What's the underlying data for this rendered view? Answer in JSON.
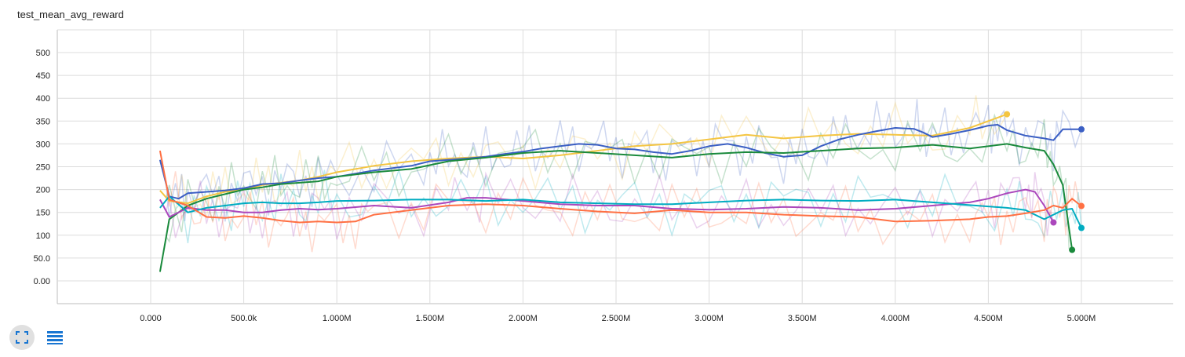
{
  "card": {
    "title": "test_mean_avg_reward"
  },
  "toolbar": {
    "icons": [
      "fit-domain-icon",
      "toggle-log-list-icon"
    ],
    "accent": "#1976d2"
  },
  "chart_data": {
    "type": "line",
    "title": "test_mean_avg_reward",
    "xlabel": "",
    "ylabel": "",
    "xlim": [
      0,
      5000000
    ],
    "ylim": [
      0,
      520
    ],
    "xticks": [
      0,
      500000,
      1000000,
      1500000,
      2000000,
      2500000,
      3000000,
      3500000,
      4000000,
      4500000,
      5000000
    ],
    "xtick_labels": [
      "0.000",
      "500.0k",
      "1.000M",
      "1.500M",
      "2.000M",
      "2.500M",
      "3.000M",
      "3.500M",
      "4.000M",
      "4.500M",
      "5.000M"
    ],
    "yticks": [
      0,
      50,
      100,
      150,
      200,
      250,
      300,
      350,
      400,
      450,
      500
    ],
    "ytick_labels": [
      "0.00",
      "50.0",
      "100",
      "150",
      "200",
      "250",
      "300",
      "350",
      "400",
      "450",
      "500"
    ],
    "grid": true,
    "legend": "none",
    "raw_series_shown_faded": true,
    "series": [
      {
        "color": "#f4c542",
        "x": [
          50000,
          100000,
          200000,
          300000,
          400000,
          500000,
          600000,
          700000,
          800000,
          900000,
          1000000,
          1200000,
          1400000,
          1600000,
          1800000,
          2000000,
          2200000,
          2400000,
          2600000,
          2800000,
          3000000,
          3200000,
          3400000,
          3600000,
          3800000,
          4000000,
          4200000,
          4400000,
          4500000,
          4600000
        ],
        "y": [
          198,
          175,
          170,
          185,
          195,
          200,
          210,
          215,
          220,
          228,
          238,
          252,
          262,
          268,
          272,
          268,
          275,
          285,
          295,
          300,
          310,
          320,
          312,
          318,
          322,
          320,
          318,
          335,
          350,
          365
        ]
      },
      {
        "color": "#3b5fc4",
        "x": [
          50000,
          100000,
          150000,
          200000,
          300000,
          400000,
          500000,
          600000,
          700000,
          800000,
          900000,
          1000000,
          1200000,
          1400000,
          1500000,
          1600000,
          1700000,
          1800000,
          1900000,
          2000000,
          2100000,
          2200000,
          2300000,
          2400000,
          2500000,
          2600000,
          2700000,
          2800000,
          2900000,
          3000000,
          3100000,
          3200000,
          3300000,
          3400000,
          3500000,
          3600000,
          3700000,
          3800000,
          3900000,
          4000000,
          4100000,
          4150000,
          4200000,
          4300000,
          4400000,
          4500000,
          4550000,
          4600000,
          4700000,
          4800000,
          4850000,
          4900000,
          5000000
        ],
        "y": [
          265,
          185,
          180,
          192,
          195,
          198,
          203,
          212,
          214,
          220,
          225,
          228,
          242,
          252,
          262,
          265,
          268,
          272,
          278,
          283,
          290,
          295,
          300,
          298,
          290,
          288,
          282,
          278,
          285,
          295,
          300,
          292,
          280,
          272,
          275,
          295,
          310,
          320,
          328,
          335,
          333,
          325,
          315,
          322,
          330,
          340,
          342,
          330,
          318,
          312,
          308,
          332,
          332
        ]
      },
      {
        "color": "#1a8a3c",
        "x": [
          50000,
          100000,
          200000,
          300000,
          400000,
          500000,
          600000,
          700000,
          800000,
          900000,
          1000000,
          1200000,
          1400000,
          1600000,
          1800000,
          2000000,
          2200000,
          2400000,
          2600000,
          2800000,
          3000000,
          3200000,
          3400000,
          3600000,
          3800000,
          4000000,
          4200000,
          4400000,
          4600000,
          4700000,
          4800000,
          4850000,
          4900000,
          4950000
        ],
        "y": [
          20,
          135,
          165,
          180,
          190,
          200,
          205,
          212,
          215,
          218,
          228,
          238,
          245,
          262,
          270,
          280,
          285,
          280,
          275,
          270,
          278,
          282,
          280,
          285,
          290,
          292,
          298,
          290,
          300,
          292,
          285,
          255,
          210,
          68
        ]
      },
      {
        "color": "#ab47bc",
        "x": [
          50000,
          100000,
          200000,
          300000,
          400000,
          500000,
          600000,
          700000,
          800000,
          900000,
          1000000,
          1200000,
          1400000,
          1600000,
          1700000,
          1800000,
          2000000,
          2200000,
          2400000,
          2600000,
          2800000,
          3000000,
          3200000,
          3400000,
          3600000,
          3800000,
          4000000,
          4200000,
          4400000,
          4500000,
          4600000,
          4700000,
          4750000,
          4800000,
          4850000
        ],
        "y": [
          178,
          140,
          160,
          155,
          155,
          150,
          150,
          155,
          158,
          156,
          158,
          165,
          160,
          172,
          182,
          182,
          175,
          168,
          165,
          165,
          158,
          156,
          158,
          162,
          160,
          155,
          158,
          165,
          172,
          180,
          192,
          200,
          195,
          165,
          128
        ]
      },
      {
        "color": "#00acc1",
        "x": [
          50000,
          100000,
          200000,
          300000,
          400000,
          500000,
          600000,
          700000,
          800000,
          900000,
          1000000,
          1200000,
          1400000,
          1600000,
          1800000,
          2000000,
          2200000,
          2400000,
          2600000,
          2800000,
          3000000,
          3200000,
          3400000,
          3600000,
          3800000,
          4000000,
          4200000,
          4400000,
          4600000,
          4700000,
          4800000,
          4900000,
          4950000,
          5000000
        ],
        "y": [
          160,
          185,
          150,
          160,
          165,
          170,
          172,
          170,
          170,
          172,
          175,
          176,
          178,
          178,
          175,
          178,
          172,
          170,
          168,
          168,
          172,
          176,
          178,
          176,
          175,
          178,
          172,
          166,
          160,
          155,
          135,
          155,
          158,
          116
        ]
      },
      {
        "color": "#ff7043",
        "x": [
          50000,
          100000,
          200000,
          300000,
          400000,
          500000,
          600000,
          700000,
          800000,
          900000,
          1000000,
          1100000,
          1200000,
          1400000,
          1600000,
          1800000,
          2000000,
          2200000,
          2400000,
          2600000,
          2800000,
          3000000,
          3200000,
          3400000,
          3600000,
          3800000,
          4000000,
          4200000,
          4400000,
          4500000,
          4600000,
          4700000,
          4800000,
          4850000,
          4900000,
          4950000,
          5000000
        ],
        "y": [
          285,
          178,
          165,
          140,
          138,
          142,
          138,
          132,
          128,
          130,
          128,
          130,
          145,
          155,
          165,
          168,
          165,
          158,
          152,
          148,
          155,
          150,
          150,
          145,
          142,
          140,
          130,
          132,
          135,
          140,
          142,
          148,
          155,
          165,
          160,
          180,
          164
        ]
      }
    ]
  }
}
